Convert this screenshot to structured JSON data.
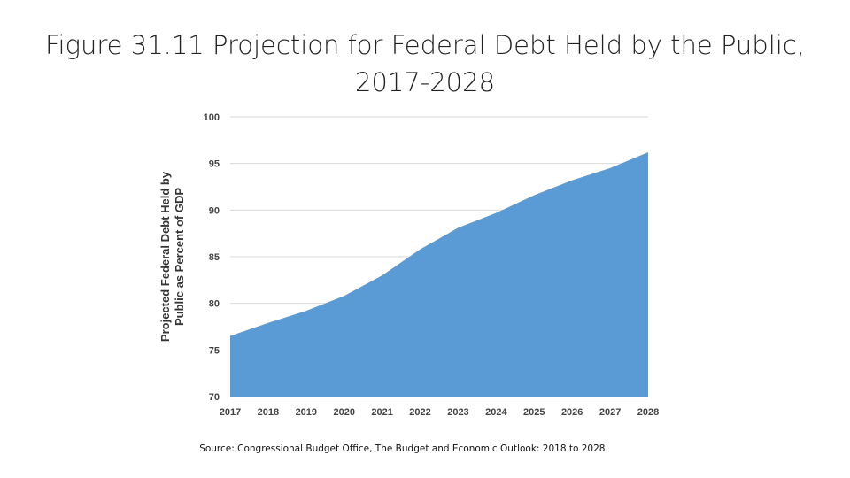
{
  "slide": {
    "title_line1": "Figure 31.11 Projection for Federal Debt Held by the Public,",
    "title_line2": "2017-2028",
    "source": "Source: Congressional Budget Office, The Budget and Economic Outlook: 2018 to 2028."
  },
  "chart_data": {
    "type": "area",
    "title": "Figure 31.11 Projection for Federal Debt Held by the Public, 2017-2028",
    "xlabel": "",
    "ylabel": "Projected Federal Debt Held by Public as Percent of GDP",
    "ylabel_lines": [
      "Projected Federal Debt Held by",
      "Public as Percent of GDP"
    ],
    "x": [
      2017,
      2018,
      2019,
      2020,
      2021,
      2022,
      2023,
      2024,
      2025,
      2026,
      2027,
      2028
    ],
    "series": [
      {
        "values": [
          76.5,
          77.9,
          79.2,
          80.8,
          83.0,
          85.8,
          88.1,
          89.7,
          91.6,
          93.2,
          94.5,
          96.2
        ]
      }
    ],
    "xticks": [
      "2017",
      "2018",
      "2019",
      "2020",
      "2021",
      "2022",
      "2023",
      "2024",
      "2025",
      "2026",
      "2027",
      "2028"
    ],
    "yticks": [
      "70",
      "75",
      "80",
      "85",
      "90",
      "95",
      "100"
    ],
    "ylim": [
      70,
      100
    ],
    "grid": true,
    "legend": "none",
    "colors": {
      "fill": "#5b9bd5",
      "grid": "#d9d9d9"
    }
  }
}
